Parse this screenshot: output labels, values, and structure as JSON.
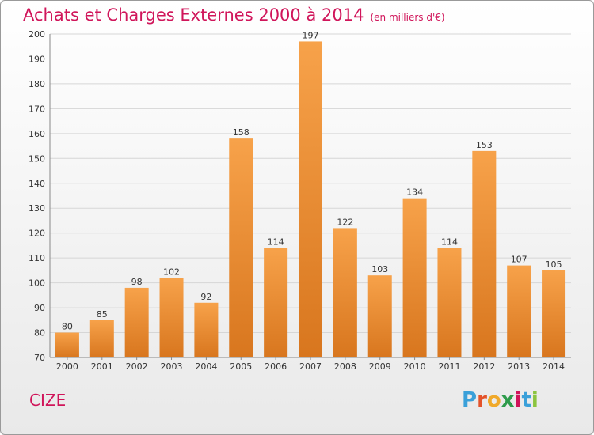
{
  "header": {
    "title": "Achats et Charges Externes 2000 à 2014",
    "subtitle": "(en milliers d'€)"
  },
  "footer": {
    "commune": "CIZE",
    "logo": "Proxiti"
  },
  "colors": {
    "title": "#d0155a",
    "bar_top": "#f7a24a",
    "bar_bottom": "#d8761e",
    "logo_letters": [
      "#3aa0d9",
      "#e4532a",
      "#f0a92a",
      "#2e9b4b",
      "#d0155a",
      "#3aa0d9",
      "#8bc43f"
    ]
  },
  "chart_data": {
    "type": "bar",
    "title": "Achats et Charges Externes 2000 à 2014",
    "subtitle": "(en milliers d'€)",
    "categories": [
      "2000",
      "2001",
      "2002",
      "2003",
      "2004",
      "2005",
      "2006",
      "2007",
      "2008",
      "2009",
      "2010",
      "2011",
      "2012",
      "2013",
      "2014"
    ],
    "values": [
      80,
      85,
      98,
      102,
      92,
      158,
      114,
      197,
      122,
      103,
      134,
      114,
      153,
      107,
      105
    ],
    "ylim": [
      70,
      200
    ],
    "yticks": [
      70,
      80,
      90,
      100,
      110,
      120,
      130,
      140,
      150,
      160,
      170,
      180,
      190,
      200
    ],
    "grid": true,
    "xlabel": "",
    "ylabel": ""
  }
}
